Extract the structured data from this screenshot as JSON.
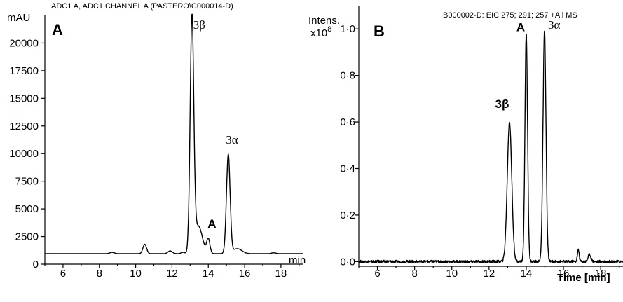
{
  "chart_data": [
    {
      "type": "line",
      "panel_label": "A",
      "header": "ADC1 A, ADC1 CHANNEL A (PASTERO\\C000014-D)",
      "ylabel": "mAU",
      "xlabel": "min",
      "xlim": [
        5,
        19.2
      ],
      "ylim": [
        0,
        22500
      ],
      "x_ticks": [
        6,
        8,
        10,
        12,
        14,
        16,
        18
      ],
      "x_tick_labels": [
        "6",
        "8",
        "10",
        "12",
        "14",
        "16",
        "18"
      ],
      "y_ticks": [
        0,
        2500,
        5000,
        7500,
        10000,
        12500,
        15000,
        17500,
        20000
      ],
      "y_tick_labels": [
        "0",
        "2500",
        "5000",
        "7500",
        "10000",
        "12500",
        "15000",
        "17500",
        "20000"
      ],
      "baseline": 950,
      "peaks": [
        {
          "x": 8.7,
          "height": 120,
          "width": 0.12
        },
        {
          "x": 10.5,
          "height": 850,
          "width": 0.1
        },
        {
          "x": 11.9,
          "height": 250,
          "width": 0.12
        },
        {
          "x": 12.6,
          "height": 120,
          "width": 0.1
        },
        {
          "x": 13.1,
          "height": 21000,
          "width": 0.1
        },
        {
          "x": 13.45,
          "height": 2500,
          "width": 0.22
        },
        {
          "x": 14.0,
          "height": 1300,
          "width": 0.09
        },
        {
          "x": 15.1,
          "height": 8950,
          "width": 0.1
        },
        {
          "x": 15.6,
          "height": 450,
          "width": 0.25
        },
        {
          "x": 17.6,
          "height": 80,
          "width": 0.12
        }
      ],
      "annotations": [
        {
          "text": "3β",
          "x": 13.5,
          "y": 21300,
          "style": "serif"
        },
        {
          "text": "A",
          "x": 14.2,
          "y": 3300,
          "style": "bold"
        },
        {
          "text": "3α",
          "x": 15.3,
          "y": 10900,
          "style": "serif"
        }
      ]
    },
    {
      "type": "line",
      "panel_label": "B",
      "header": "B000002-D: EIC 275; 291; 257 +All MS",
      "ylabel": "Intens.",
      "yunit": "x10",
      "yunit_exp": "8",
      "xlabel": "Time [min]",
      "xlim": [
        5,
        19.2
      ],
      "ylim": [
        -0.02,
        1.1
      ],
      "x_ticks": [
        6,
        8,
        10,
        12,
        14,
        16,
        18
      ],
      "x_tick_labels": [
        "6",
        "8",
        "10",
        "12",
        "14",
        "16",
        "18"
      ],
      "y_ticks": [
        0,
        0.2,
        0.4,
        0.6,
        0.8,
        1.0
      ],
      "y_tick_labels": [
        "0·0",
        "0·2",
        "0·4",
        "0·6",
        "0·8",
        "1·0"
      ],
      "baseline": 0.0,
      "peaks": [
        {
          "x": 13.1,
          "height": 0.6,
          "width": 0.12
        },
        {
          "x": 14.0,
          "height": 0.98,
          "width": 0.07
        },
        {
          "x": 14.98,
          "height": 0.99,
          "width": 0.08
        },
        {
          "x": 16.8,
          "height": 0.05,
          "width": 0.05
        },
        {
          "x": 17.4,
          "height": 0.03,
          "width": 0.08
        }
      ],
      "annotations": [
        {
          "text": "3β",
          "x": 12.7,
          "y": 0.66,
          "style": "bold"
        },
        {
          "text": "A",
          "x": 13.7,
          "y": 0.99,
          "style": "bold"
        },
        {
          "text": "3α",
          "x": 15.5,
          "y": 1.0,
          "style": "serif"
        }
      ]
    }
  ]
}
